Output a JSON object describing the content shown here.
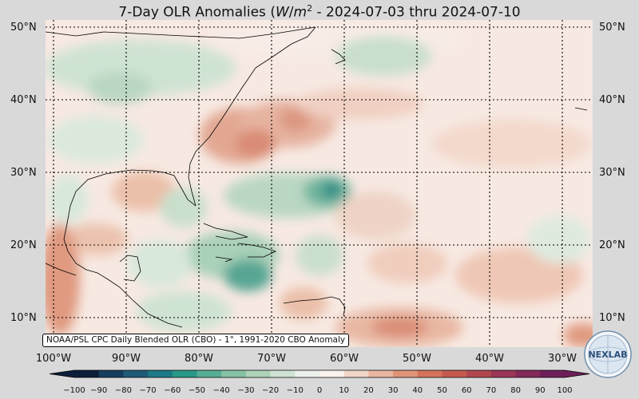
{
  "title": "7-Day OLR Anomalies (W/m²) - 2024-07-03 thru 2024-07-10",
  "lat_labels": [
    "50°N",
    "40°N",
    "30°N",
    "20°N",
    "10°N"
  ],
  "lon_labels": [
    "100°W",
    "90°W",
    "80°W",
    "70°W",
    "60°W",
    "50°W",
    "40°W",
    "30°W"
  ],
  "credit": "NOAA/PSL CPC Daily Blended OLR (CBO) - 1°, 1991-2020 CBO Anomaly",
  "logo_text": "NEXLAB",
  "colorbar": {
    "ticks": [
      "−100",
      "−90",
      "−80",
      "−70",
      "−60",
      "−50",
      "−40",
      "−30",
      "−20",
      "−10",
      "0",
      "10",
      "20",
      "30",
      "40",
      "50",
      "60",
      "70",
      "80",
      "90",
      "100"
    ],
    "colors": [
      "#0b1f3a",
      "#173d5e",
      "#1f5a78",
      "#1d7a86",
      "#2a9888",
      "#56ad95",
      "#86c2a4",
      "#aed3b9",
      "#cfe3d3",
      "#eaf1ea",
      "#faf2ec",
      "#f1d6c8",
      "#e8b5a0",
      "#df9478",
      "#d4735a",
      "#c45a4f",
      "#b0474f",
      "#9a3656",
      "#842a5a",
      "#6c1f58"
    ]
  }
}
